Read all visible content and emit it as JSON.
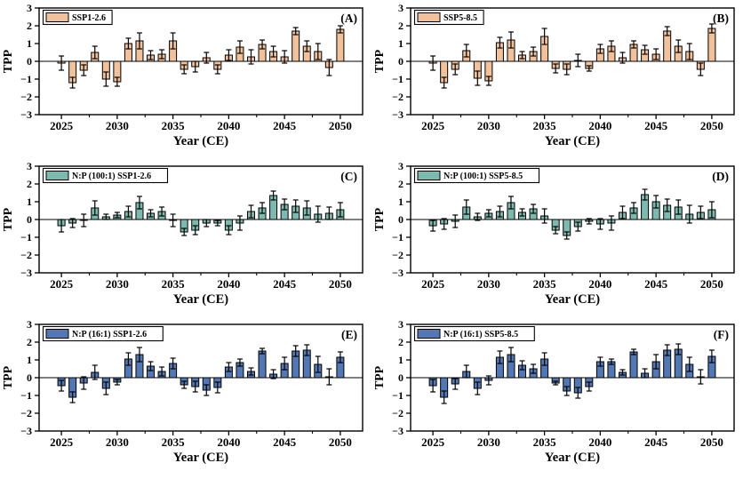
{
  "figure": {
    "background": "#ffffff",
    "xlabel": "Year (CE)",
    "ylabel": "TPP",
    "ylim": [
      -3,
      3
    ],
    "yticks": [
      3,
      2,
      1,
      0,
      -1,
      -2,
      -3
    ],
    "xticks": [
      2025,
      2030,
      2035,
      2040,
      2045,
      2050
    ],
    "years": [
      2025,
      2026,
      2027,
      2028,
      2029,
      2030,
      2031,
      2032,
      2033,
      2034,
      2035,
      2036,
      2037,
      2038,
      2039,
      2040,
      2041,
      2042,
      2043,
      2044,
      2045,
      2046,
      2047,
      2048,
      2049,
      2050
    ]
  },
  "chart_data": [
    {
      "type": "bar",
      "panel_label": "(A)",
      "legend": "SSP1-2.6",
      "color": "#F1C19C",
      "xlabel": "Year (CE)",
      "ylabel": "TPP",
      "ylim": [
        -3,
        3
      ],
      "x": [
        2025,
        2026,
        2027,
        2028,
        2029,
        2030,
        2031,
        2032,
        2033,
        2034,
        2035,
        2036,
        2037,
        2038,
        2039,
        2040,
        2041,
        2042,
        2043,
        2044,
        2045,
        2046,
        2047,
        2048,
        2049,
        2050
      ],
      "values": [
        -0.1,
        -1.2,
        -0.5,
        0.5,
        -1.0,
        -1.15,
        1.0,
        1.15,
        0.35,
        0.4,
        1.15,
        -0.45,
        -0.3,
        0.2,
        -0.45,
        0.35,
        0.8,
        0.25,
        0.95,
        0.55,
        0.25,
        1.7,
        0.85,
        0.55,
        -0.35,
        1.8
      ],
      "errors": [
        0.4,
        0.3,
        0.3,
        0.35,
        0.4,
        0.25,
        0.3,
        0.45,
        0.25,
        0.25,
        0.45,
        0.25,
        0.3,
        0.3,
        0.25,
        0.3,
        0.35,
        0.4,
        0.25,
        0.3,
        0.35,
        0.2,
        0.3,
        0.45,
        0.45,
        0.2
      ]
    },
    {
      "type": "bar",
      "panel_label": "(B)",
      "legend": "SSP5-8.5",
      "color": "#F1C19C",
      "xlabel": "Year (CE)",
      "ylabel": "TPP",
      "ylim": [
        -3,
        3
      ],
      "x": [
        2025,
        2026,
        2027,
        2028,
        2029,
        2030,
        2031,
        2032,
        2033,
        2034,
        2035,
        2036,
        2037,
        2038,
        2039,
        2040,
        2041,
        2042,
        2043,
        2044,
        2045,
        2046,
        2047,
        2048,
        2049,
        2050
      ],
      "values": [
        -0.1,
        -1.2,
        -0.45,
        0.6,
        -0.95,
        -1.1,
        1.05,
        1.2,
        0.35,
        0.55,
        1.4,
        -0.4,
        -0.45,
        0.05,
        -0.4,
        0.7,
        0.85,
        0.2,
        0.95,
        0.65,
        0.4,
        1.7,
        0.85,
        0.55,
        -0.45,
        1.85
      ],
      "errors": [
        0.4,
        0.3,
        0.3,
        0.35,
        0.4,
        0.25,
        0.3,
        0.45,
        0.2,
        0.25,
        0.45,
        0.25,
        0.3,
        0.35,
        0.15,
        0.25,
        0.3,
        0.3,
        0.2,
        0.25,
        0.3,
        0.25,
        0.35,
        0.45,
        0.35,
        0.25
      ]
    },
    {
      "type": "bar",
      "panel_label": "(C)",
      "legend": "N:P (100:1) SSP1-2.6",
      "color": "#7CB9AF",
      "xlabel": "Year (CE)",
      "ylabel": "TPP",
      "ylim": [
        -3,
        3
      ],
      "x": [
        2025,
        2026,
        2027,
        2028,
        2029,
        2030,
        2031,
        2032,
        2033,
        2034,
        2035,
        2036,
        2037,
        2038,
        2039,
        2040,
        2041,
        2042,
        2043,
        2044,
        2045,
        2046,
        2047,
        2048,
        2049,
        2050
      ],
      "values": [
        -0.35,
        -0.2,
        -0.05,
        0.65,
        0.15,
        0.25,
        0.45,
        0.95,
        0.35,
        0.45,
        -0.05,
        -0.7,
        -0.6,
        -0.2,
        -0.2,
        -0.6,
        -0.2,
        0.45,
        0.65,
        1.35,
        0.85,
        0.75,
        0.65,
        0.3,
        0.35,
        0.55
      ],
      "errors": [
        0.35,
        0.25,
        0.35,
        0.4,
        0.15,
        0.15,
        0.3,
        0.35,
        0.2,
        0.25,
        0.35,
        0.2,
        0.25,
        0.2,
        0.15,
        0.25,
        0.4,
        0.35,
        0.3,
        0.25,
        0.3,
        0.35,
        0.4,
        0.45,
        0.35,
        0.4
      ]
    },
    {
      "type": "bar",
      "panel_label": "(D)",
      "legend": "N:P (100:1) SSP5-8.5",
      "color": "#7CB9AF",
      "xlabel": "Year (CE)",
      "ylabel": "TPP",
      "ylim": [
        -3,
        3
      ],
      "x": [
        2025,
        2026,
        2027,
        2028,
        2029,
        2030,
        2031,
        2032,
        2033,
        2034,
        2035,
        2036,
        2037,
        2038,
        2039,
        2040,
        2041,
        2042,
        2043,
        2044,
        2045,
        2046,
        2047,
        2048,
        2049,
        2050
      ],
      "values": [
        -0.35,
        -0.25,
        -0.1,
        0.7,
        0.15,
        0.35,
        0.45,
        0.95,
        0.4,
        0.6,
        0.2,
        -0.6,
        -0.9,
        -0.4,
        -0.1,
        -0.25,
        -0.2,
        0.4,
        0.65,
        1.4,
        1.0,
        0.8,
        0.7,
        0.3,
        0.4,
        0.55
      ],
      "errors": [
        0.3,
        0.3,
        0.35,
        0.4,
        0.2,
        0.2,
        0.3,
        0.35,
        0.2,
        0.25,
        0.4,
        0.2,
        0.2,
        0.25,
        0.15,
        0.3,
        0.4,
        0.35,
        0.3,
        0.3,
        0.35,
        0.35,
        0.4,
        0.5,
        0.35,
        0.45
      ]
    },
    {
      "type": "bar",
      "panel_label": "(E)",
      "legend": "N:P (16:1) SSP1-2.6",
      "color": "#5277B2",
      "xlabel": "Year (CE)",
      "ylabel": "TPP",
      "ylim": [
        -3,
        3
      ],
      "x": [
        2025,
        2026,
        2027,
        2028,
        2029,
        2030,
        2031,
        2032,
        2033,
        2034,
        2035,
        2036,
        2037,
        2038,
        2039,
        2040,
        2041,
        2042,
        2043,
        2044,
        2045,
        2046,
        2047,
        2048,
        2049,
        2050
      ],
      "values": [
        -0.45,
        -1.1,
        -0.3,
        0.3,
        -0.6,
        -0.25,
        1.05,
        1.3,
        0.65,
        0.35,
        0.8,
        -0.4,
        -0.5,
        -0.7,
        -0.55,
        0.6,
        0.85,
        0.35,
        1.5,
        0.2,
        0.8,
        1.5,
        1.55,
        0.75,
        0.05,
        1.15
      ],
      "errors": [
        0.3,
        0.3,
        0.35,
        0.4,
        0.35,
        0.15,
        0.35,
        0.4,
        0.25,
        0.25,
        0.3,
        0.2,
        0.3,
        0.3,
        0.3,
        0.25,
        0.2,
        0.2,
        0.15,
        0.25,
        0.35,
        0.3,
        0.3,
        0.45,
        0.45,
        0.3
      ]
    },
    {
      "type": "bar",
      "panel_label": "(F)",
      "legend": "N:P (16:1) SSP5-8.5",
      "color": "#5277B2",
      "xlabel": "Year (CE)",
      "ylabel": "TPP",
      "ylim": [
        -3,
        3
      ],
      "x": [
        2025,
        2026,
        2027,
        2028,
        2029,
        2030,
        2031,
        2032,
        2033,
        2034,
        2035,
        2036,
        2037,
        2038,
        2039,
        2040,
        2041,
        2042,
        2043,
        2044,
        2045,
        2046,
        2047,
        2048,
        2049,
        2050
      ],
      "values": [
        -0.45,
        -1.1,
        -0.35,
        0.35,
        -0.6,
        -0.15,
        1.15,
        1.3,
        0.7,
        0.5,
        1.05,
        -0.3,
        -0.75,
        -0.85,
        -0.5,
        0.9,
        0.9,
        0.3,
        1.45,
        0.25,
        0.9,
        1.55,
        1.6,
        0.75,
        0.05,
        1.2
      ],
      "errors": [
        0.35,
        0.35,
        0.3,
        0.35,
        0.35,
        0.25,
        0.35,
        0.4,
        0.25,
        0.25,
        0.35,
        0.1,
        0.25,
        0.3,
        0.25,
        0.25,
        0.15,
        0.15,
        0.15,
        0.25,
        0.4,
        0.3,
        0.3,
        0.4,
        0.4,
        0.35
      ]
    }
  ]
}
